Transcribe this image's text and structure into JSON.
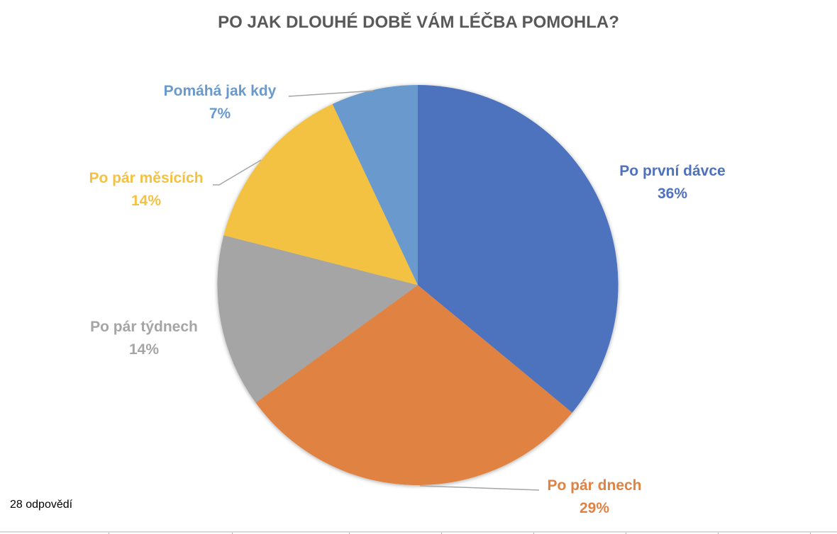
{
  "chart_data": {
    "type": "pie",
    "title": "PO JAK DLOUHÉ DOBĚ VÁM LÉČBA POMOHLA?",
    "categories": [
      "Po první dávce",
      "Po pár dnech",
      "Po pár týdnech",
      "Po pár měsících",
      "Pomáhá jak kdy"
    ],
    "values": [
      36,
      29,
      14,
      14,
      7
    ],
    "labels": [
      "36%",
      "29%",
      "14%",
      "14%",
      "7%"
    ],
    "colors": [
      "#4E72BE",
      "#E08243",
      "#A5A5A5",
      "#F4C243",
      "#6A9ACD"
    ],
    "legend": "none (data labels outside slices)",
    "note": "28 odpovědí"
  },
  "footnote": "28 odpovědí"
}
